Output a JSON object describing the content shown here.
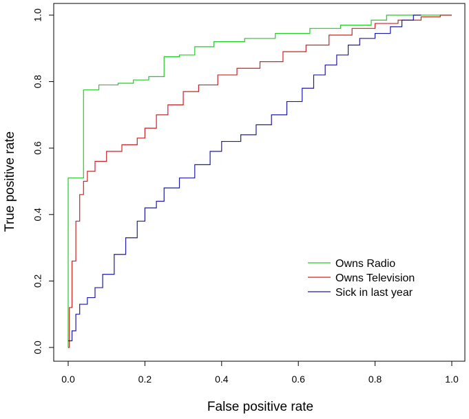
{
  "chart_data": {
    "type": "line",
    "title": "",
    "xlabel": "False positive rate",
    "ylabel": "True positive rate",
    "xlim": [
      0,
      1
    ],
    "ylim": [
      0,
      1
    ],
    "x_ticks": [
      "0.0",
      "0.2",
      "0.4",
      "0.6",
      "0.8",
      "1.0"
    ],
    "y_ticks": [
      "0.0",
      "0.2",
      "0.4",
      "0.6",
      "0.8",
      "1.0"
    ],
    "grid": false,
    "legend_position": "bottom-right",
    "series": [
      {
        "name": "Owns Radio",
        "color": "#22cc22",
        "step": true,
        "points": [
          [
            0,
            0
          ],
          [
            0,
            0.51
          ],
          [
            0.04,
            0.51
          ],
          [
            0.04,
            0.775
          ],
          [
            0.08,
            0.775
          ],
          [
            0.08,
            0.79
          ],
          [
            0.13,
            0.795
          ],
          [
            0.17,
            0.805
          ],
          [
            0.21,
            0.815
          ],
          [
            0.25,
            0.815
          ],
          [
            0.25,
            0.875
          ],
          [
            0.29,
            0.88
          ],
          [
            0.33,
            0.905
          ],
          [
            0.38,
            0.92
          ],
          [
            0.46,
            0.93
          ],
          [
            0.54,
            0.945
          ],
          [
            0.63,
            0.96
          ],
          [
            0.71,
            0.97
          ],
          [
            0.79,
            0.985
          ],
          [
            0.83,
            0.99
          ],
          [
            0.83,
            1.0
          ],
          [
            1.0,
            1.0
          ]
        ]
      },
      {
        "name": "Owns Television",
        "color": "#cc2222",
        "step": true,
        "points": [
          [
            0,
            0
          ],
          [
            0.003,
            0.12
          ],
          [
            0.01,
            0.26
          ],
          [
            0.02,
            0.38
          ],
          [
            0.03,
            0.46
          ],
          [
            0.04,
            0.5
          ],
          [
            0.05,
            0.53
          ],
          [
            0.07,
            0.56
          ],
          [
            0.1,
            0.59
          ],
          [
            0.14,
            0.61
          ],
          [
            0.18,
            0.63
          ],
          [
            0.2,
            0.66
          ],
          [
            0.23,
            0.7
          ],
          [
            0.26,
            0.73
          ],
          [
            0.3,
            0.77
          ],
          [
            0.34,
            0.79
          ],
          [
            0.39,
            0.82
          ],
          [
            0.44,
            0.84
          ],
          [
            0.5,
            0.86
          ],
          [
            0.56,
            0.89
          ],
          [
            0.62,
            0.91
          ],
          [
            0.68,
            0.94
          ],
          [
            0.74,
            0.96
          ],
          [
            0.8,
            0.975
          ],
          [
            0.86,
            0.985
          ],
          [
            0.92,
            0.995
          ],
          [
            0.97,
            1.0
          ],
          [
            1.0,
            1.0
          ]
        ]
      },
      {
        "name": "Sick in last year",
        "color": "#1a1aaa",
        "step": true,
        "points": [
          [
            0,
            0.02
          ],
          [
            0.01,
            0.05
          ],
          [
            0.02,
            0.1
          ],
          [
            0.03,
            0.13
          ],
          [
            0.05,
            0.15
          ],
          [
            0.07,
            0.18
          ],
          [
            0.09,
            0.22
          ],
          [
            0.12,
            0.28
          ],
          [
            0.15,
            0.33
          ],
          [
            0.18,
            0.38
          ],
          [
            0.2,
            0.42
          ],
          [
            0.23,
            0.44
          ],
          [
            0.25,
            0.48
          ],
          [
            0.29,
            0.51
          ],
          [
            0.33,
            0.55
          ],
          [
            0.37,
            0.59
          ],
          [
            0.4,
            0.62
          ],
          [
            0.45,
            0.64
          ],
          [
            0.49,
            0.67
          ],
          [
            0.53,
            0.7
          ],
          [
            0.57,
            0.74
          ],
          [
            0.61,
            0.78
          ],
          [
            0.64,
            0.82
          ],
          [
            0.67,
            0.85
          ],
          [
            0.7,
            0.88
          ],
          [
            0.73,
            0.91
          ],
          [
            0.76,
            0.93
          ],
          [
            0.8,
            0.945
          ],
          [
            0.84,
            0.965
          ],
          [
            0.87,
            0.985
          ],
          [
            0.9,
            1.0
          ],
          [
            0.92,
            1.0
          ]
        ]
      }
    ]
  }
}
